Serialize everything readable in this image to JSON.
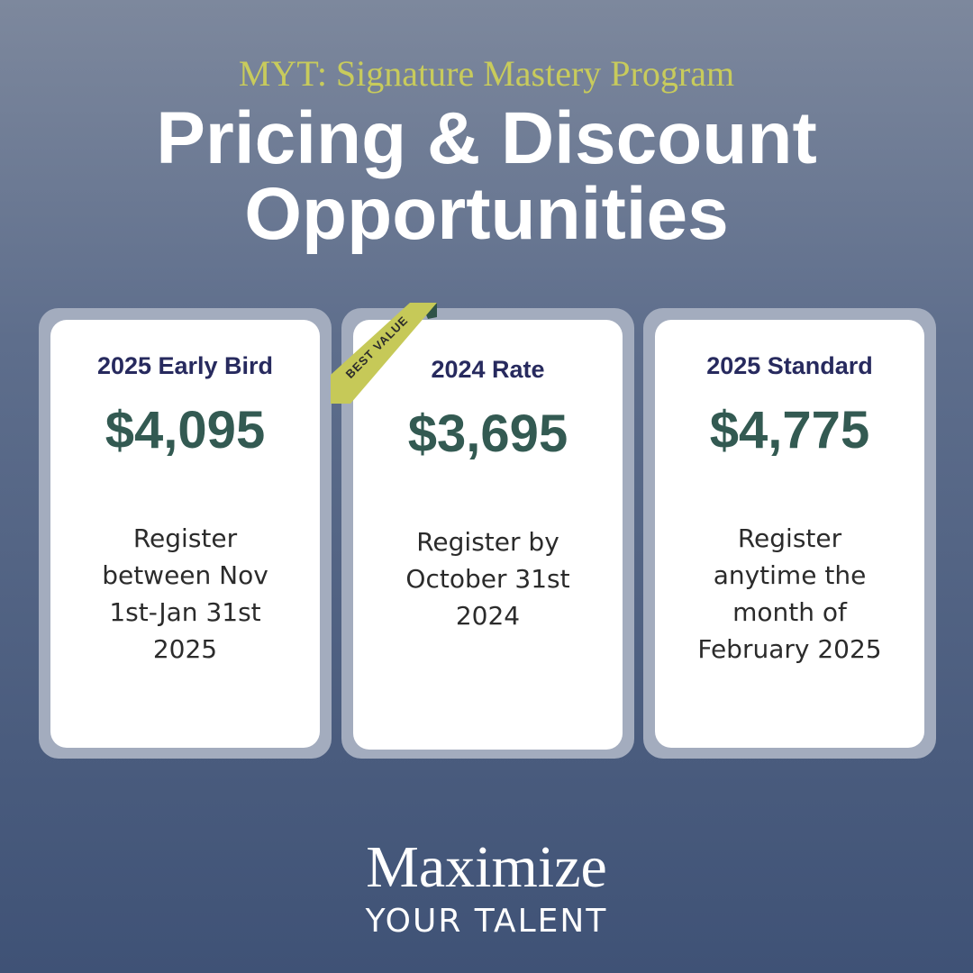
{
  "header": {
    "subtitle": "MYT: Signature Mastery Program",
    "title": "Pricing & Discount Opportunities"
  },
  "cards": [
    {
      "label": "2025 Early Bird",
      "price": "$4,095",
      "description": "Register between Nov 1st-Jan 31st 2025"
    },
    {
      "label": "2024 Rate",
      "price": "$3,695",
      "description": "Register by October 31st 2024",
      "badge": "BEST VALUE"
    },
    {
      "label": "2025 Standard",
      "price": "$4,775",
      "description": "Register anytime the month of February 2025"
    }
  ],
  "footer": {
    "brand": "Maximize",
    "tagline": "YOUR TALENT"
  }
}
